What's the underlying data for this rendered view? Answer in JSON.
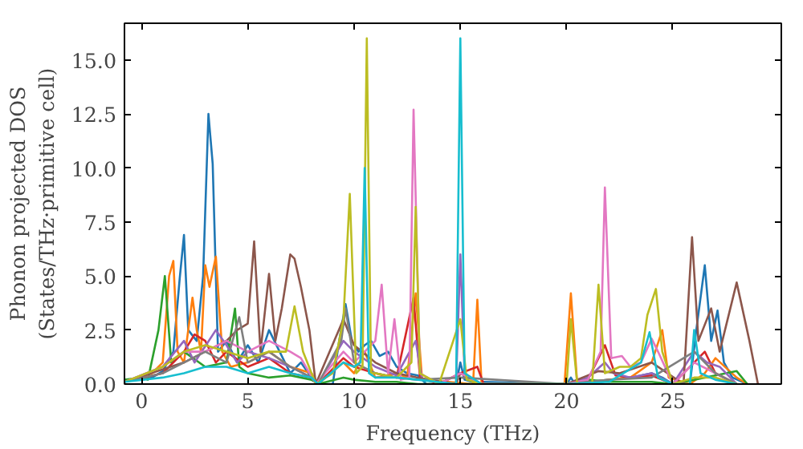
{
  "chart_data": {
    "type": "line",
    "xlabel": "Frequency (THz)",
    "ylabel": "Phonon projected DOS\n(States/THz·primitive cell)",
    "xlim": [
      -0.8,
      30.1
    ],
    "ylim": [
      0,
      16.7
    ],
    "xticks": [
      0,
      5,
      10,
      15,
      20,
      25
    ],
    "yticks": [
      {
        "value": 0,
        "label": "0.0"
      },
      {
        "value": 2.5,
        "label": "2.5"
      },
      {
        "value": 5,
        "label": "5.0"
      },
      {
        "value": 7.5,
        "label": "7.5"
      },
      {
        "value": 10,
        "label": "10.0"
      },
      {
        "value": 12.5,
        "label": "12.5"
      },
      {
        "value": 15,
        "label": "15.0"
      }
    ],
    "grid": false,
    "series": [
      {
        "color": "#1f77b4",
        "x": [
          -0.8,
          0,
          0.5,
          1,
          1.5,
          1.8,
          2.0,
          2.2,
          2.6,
          2.9,
          3.15,
          3.35,
          3.6,
          4,
          4.5,
          5,
          5.5,
          6,
          6.5,
          7,
          7.5,
          8,
          8.3,
          9,
          9.3,
          9.6,
          9.9,
          10.2,
          10.5,
          10.8,
          11.2,
          11.6,
          12,
          12.5,
          13,
          13.4,
          14.8,
          15,
          15.2,
          15.9,
          16.1,
          20,
          20.2,
          20.4,
          21,
          22,
          23,
          24,
          24.5,
          25,
          25.8,
          26.1,
          26.5,
          26.8,
          27.1,
          27.4,
          27.8,
          28.5
        ],
        "values": [
          0.2,
          0.2,
          0.3,
          0.6,
          1.5,
          4.9,
          6.9,
          2.5,
          2.0,
          5.0,
          12.5,
          10.2,
          1.5,
          2.0,
          1.0,
          1.8,
          1.0,
          2.5,
          1.5,
          0.5,
          1.0,
          0.3,
          0,
          0,
          2.0,
          3.7,
          2.0,
          1.5,
          1.8,
          2.0,
          1.3,
          1.5,
          0.8,
          0.5,
          0.4,
          0,
          0,
          1.0,
          0.2,
          0,
          0.1,
          0,
          0.3,
          0,
          0.1,
          0.2,
          0.3,
          0.5,
          0.3,
          0,
          0,
          2.5,
          5.5,
          2.0,
          3.4,
          1.0,
          0.3,
          0
        ]
      },
      {
        "color": "#ff7f0e",
        "x": [
          -0.8,
          0.5,
          1.0,
          1.3,
          1.5,
          1.7,
          2.0,
          2.4,
          2.6,
          2.8,
          3.0,
          3.2,
          3.5,
          3.8,
          4.2,
          5,
          6,
          7,
          8,
          8.3,
          9.5,
          10,
          10.5,
          11,
          12,
          12.5,
          12.9,
          13.2,
          15.6,
          15.8,
          16.0,
          19.9,
          20.2,
          20.5,
          22,
          23,
          24,
          24.5,
          24.8,
          25.8,
          26.5,
          27,
          28,
          28.5
        ],
        "values": [
          0.1,
          0.5,
          1.0,
          5.0,
          5.7,
          1.5,
          1.0,
          4.0,
          2.5,
          1.5,
          5.5,
          4.5,
          5.9,
          1.5,
          0.8,
          1.0,
          1.5,
          0.8,
          0.5,
          0,
          1.0,
          0.5,
          1.5,
          0.3,
          0.5,
          0.3,
          4.2,
          0.2,
          0,
          3.9,
          0,
          0,
          4.2,
          0,
          0.2,
          0.3,
          1.0,
          2.5,
          0.3,
          0,
          0.5,
          1.2,
          0.3,
          0
        ]
      },
      {
        "color": "#2ca02c",
        "x": [
          -0.8,
          0,
          0.3,
          0.8,
          1.1,
          1.4,
          2,
          3,
          4,
          4.4,
          4.6,
          5,
          6,
          7,
          8,
          8.3,
          9.5,
          10,
          11,
          12,
          13,
          14,
          20,
          21,
          22,
          24,
          25,
          26,
          27,
          28,
          28.5
        ],
        "values": [
          0.2,
          0.3,
          0.2,
          2.5,
          5.0,
          1.0,
          1.5,
          0.8,
          1.0,
          3.5,
          0.8,
          0.5,
          0.3,
          0.4,
          0.2,
          0,
          0.3,
          0.2,
          0.1,
          0.1,
          0,
          0,
          0,
          0.2,
          0.1,
          0.1,
          0,
          0.2,
          0.4,
          0.6,
          0
        ]
      },
      {
        "color": "#d62728",
        "x": [
          -0.8,
          1,
          2,
          2.5,
          3,
          3.5,
          4,
          5,
          6,
          7,
          8,
          8.3,
          9.5,
          10,
          11,
          12,
          12.8,
          13.1,
          14,
          15,
          15.8,
          16.1,
          20,
          21,
          21.8,
          22.3,
          23,
          24,
          25,
          26,
          26.5,
          27,
          28
        ],
        "values": [
          0.1,
          0.5,
          1.5,
          2.3,
          2.0,
          1.0,
          1.5,
          0.8,
          1.2,
          0.5,
          0.3,
          0,
          1.2,
          0.8,
          0.5,
          0.3,
          4.0,
          0.3,
          0,
          0.5,
          0.8,
          0,
          0,
          0.2,
          1.8,
          0.4,
          0.3,
          0.4,
          0,
          1.0,
          1.5,
          0.5,
          0
        ]
      },
      {
        "color": "#9467bd",
        "x": [
          -0.8,
          1,
          2,
          2.5,
          3.5,
          4,
          4.5,
          5,
          6,
          7,
          8,
          8.3,
          9.5,
          10,
          11,
          12,
          12.9,
          13.2,
          14.8,
          15,
          15.2,
          16,
          20,
          21,
          21.8,
          22.2,
          23,
          24,
          25,
          26,
          26.6,
          27.2,
          28
        ],
        "values": [
          0.1,
          0.8,
          2.0,
          1.0,
          2.5,
          1.8,
          1.0,
          1.5,
          1.2,
          0.8,
          0.3,
          0,
          2.0,
          1.5,
          0.8,
          0.4,
          2.0,
          0.2,
          0,
          6.0,
          0.5,
          0,
          0,
          0.3,
          1.0,
          0.5,
          0.3,
          0.5,
          0,
          1.5,
          1.0,
          0.8,
          0
        ]
      },
      {
        "color": "#8c564b",
        "x": [
          -0.8,
          2,
          3,
          4,
          4.5,
          5,
          5.3,
          5.6,
          6.0,
          6.3,
          6.6,
          7.0,
          7.2,
          7.5,
          7.9,
          8.2,
          9.5,
          10,
          11,
          12,
          13,
          14.8,
          15,
          16,
          20,
          21.5,
          22.5,
          24,
          25.5,
          25.9,
          26.2,
          26.8,
          27.2,
          28.0,
          28.6,
          29
        ],
        "values": [
          0.1,
          1.0,
          1.5,
          2.0,
          2.5,
          2.8,
          6.6,
          1.5,
          5.1,
          2.0,
          3.5,
          6.0,
          5.8,
          4.5,
          2.5,
          0,
          3.0,
          1.8,
          1.0,
          0.5,
          0.3,
          0,
          0.5,
          0,
          0,
          0.6,
          0.5,
          1.0,
          0,
          6.8,
          2.0,
          3.5,
          1.5,
          4.7,
          2.0,
          0
        ]
      },
      {
        "color": "#e377c2",
        "x": [
          -0.8,
          1,
          2,
          3,
          4,
          5,
          6,
          7,
          7.5,
          8.2,
          9.5,
          10,
          11,
          11.3,
          11.6,
          11.9,
          12.2,
          12.6,
          12.8,
          13.1,
          14,
          15,
          16,
          20,
          21,
          21.6,
          21.8,
          22.1,
          22.6,
          23,
          23.5,
          24,
          24.3,
          25,
          26,
          27,
          28
        ],
        "values": [
          0.1,
          0.8,
          1.5,
          1.5,
          2.0,
          1.5,
          2.0,
          1.5,
          1.2,
          0,
          1.5,
          1.0,
          2.0,
          4.6,
          0.5,
          3.0,
          0.2,
          0.3,
          12.7,
          0.5,
          0,
          0.5,
          0,
          0,
          0.2,
          1.5,
          9.1,
          1.2,
          1.3,
          0.8,
          1.0,
          2.1,
          1.5,
          0,
          1.0,
          0.5,
          0
        ]
      },
      {
        "color": "#7f7f7f",
        "x": [
          -0.8,
          1,
          2,
          3,
          4,
          4.6,
          5,
          6,
          7,
          8,
          8.3,
          9.4,
          9.6,
          10,
          11,
          12,
          13,
          15,
          20,
          22,
          24,
          26,
          27,
          28
        ],
        "values": [
          0.1,
          0.5,
          1.0,
          1.5,
          1.0,
          3.1,
          1.0,
          1.5,
          0.8,
          0.3,
          0,
          2.0,
          3.5,
          1.0,
          0.5,
          0.3,
          0.2,
          0.3,
          0,
          0.2,
          0.3,
          1.5,
          0.5,
          0
        ]
      },
      {
        "color": "#bcbd22",
        "x": [
          -0.8,
          1,
          2,
          3,
          4,
          5,
          6,
          6.8,
          7.2,
          7.6,
          8.2,
          9,
          9.5,
          9.8,
          10.1,
          10.4,
          10.6,
          10.8,
          11,
          12,
          12.7,
          12.9,
          13.1,
          14,
          15,
          15.3,
          16,
          20,
          20.2,
          20.5,
          21.2,
          21.5,
          21.8,
          22.5,
          23,
          23.5,
          23.8,
          24.2,
          24.5,
          25,
          26,
          27,
          28
        ],
        "values": [
          0.1,
          0.8,
          1.5,
          1.8,
          1.5,
          1.2,
          1.5,
          1.5,
          3.6,
          1.5,
          0,
          0.5,
          3.0,
          8.8,
          0.5,
          0.8,
          16.0,
          0.5,
          0.5,
          0.3,
          1.0,
          8.2,
          0.5,
          0,
          3.0,
          0.2,
          0,
          0,
          3.0,
          0,
          0,
          4.6,
          0.5,
          0.8,
          0.8,
          1.2,
          3.2,
          4.4,
          1.5,
          0,
          0.3,
          0.3,
          0
        ]
      },
      {
        "color": "#17becf",
        "x": [
          -0.8,
          1,
          2,
          3,
          4,
          5,
          6,
          7,
          8,
          8.3,
          9.5,
          10,
          10.3,
          10.5,
          10.7,
          11,
          12,
          13,
          14.8,
          15,
          15.2,
          16,
          20,
          22,
          23.5,
          23.9,
          24.3,
          25,
          25.8,
          26,
          26.3,
          27,
          28
        ],
        "values": [
          0.1,
          0.3,
          0.5,
          0.8,
          0.8,
          0.5,
          0.8,
          0.5,
          0.3,
          0,
          1.0,
          0.8,
          1.0,
          10.0,
          0.5,
          0.3,
          0.3,
          0.2,
          0,
          16.0,
          0.5,
          0,
          0,
          0.1,
          1.0,
          2.4,
          0.3,
          0,
          0,
          2.5,
          0.5,
          0.2,
          0
        ]
      }
    ]
  }
}
